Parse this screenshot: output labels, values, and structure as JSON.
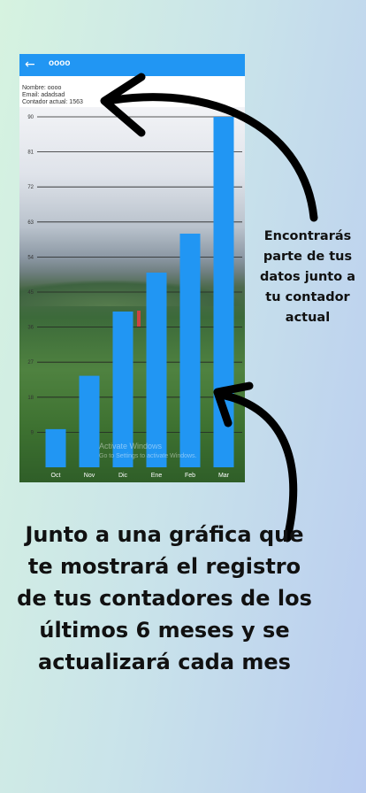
{
  "app": {
    "title": "oooo",
    "back_icon": "arrow-left-icon",
    "bar_color": "#2196f3"
  },
  "user_info": {
    "name_line": "Nombre: oooo",
    "email_line": "Email: adadsad",
    "counter_line": "Contador actual: 1563"
  },
  "chart_data": {
    "type": "bar",
    "categories": [
      "Oct",
      "Nov",
      "Dic",
      "Ene",
      "Feb",
      "Mar"
    ],
    "values": [
      9.8,
      23.5,
      40,
      50,
      60,
      90
    ],
    "y_ticks": [
      9,
      18,
      27,
      36,
      45,
      54,
      63,
      72,
      81,
      90
    ],
    "ylim": [
      0,
      90
    ],
    "grid": true,
    "bar_color": "#2196f3"
  },
  "watermark": {
    "line1": "Activate Windows",
    "line2": "Go to Settings to activate Windows."
  },
  "annotations": {
    "callout_text": "Encontrarás parte de tus datos junto a tu contador actual",
    "caption_text": "Junto a una gráfica que te mostrará el registro de tus contadores de los últimos 6 meses y se actualizará cada mes"
  }
}
